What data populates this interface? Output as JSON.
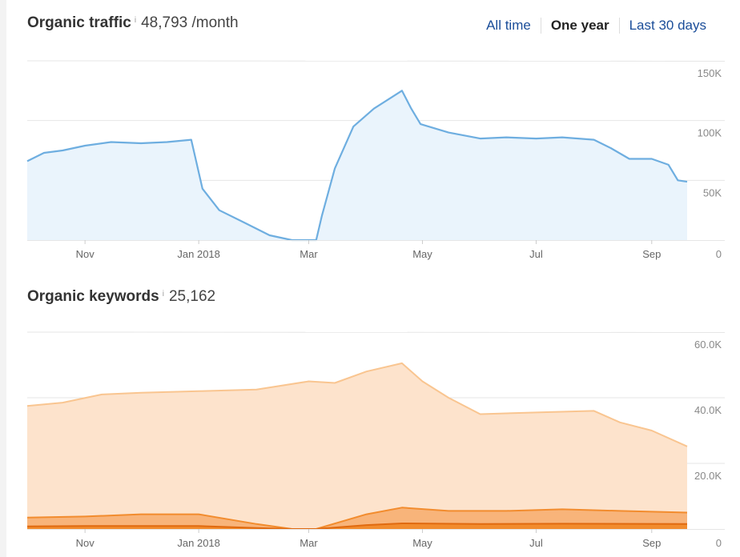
{
  "traffic": {
    "title": "Organic traffic",
    "info": "i",
    "value": "48,793 /month",
    "tabs": [
      {
        "label": "All time",
        "active": false
      },
      {
        "label": "One year",
        "active": true
      },
      {
        "label": "Last 30 days",
        "active": false
      }
    ]
  },
  "keywords": {
    "title": "Organic keywords",
    "info": "i",
    "value": "25,162"
  },
  "colors": {
    "traffic_line": "#6eaee0",
    "traffic_fill": "#eaf4fc",
    "kw_top": "#f9c590",
    "kw_top_fill": "#fde3cc",
    "kw_mid": "#f28c2e",
    "kw_mid_fill": "#f8b47a",
    "kw_low": "#e06a10",
    "tab_link": "#1a4d99",
    "grid": "#e6e6e6",
    "axis_text": "#888888"
  },
  "chart_data": [
    {
      "type": "area",
      "title": "Organic traffic",
      "x_tick_labels": [
        "Nov",
        "Jan 2018",
        "Mar",
        "May",
        "Jul",
        "Sep"
      ],
      "x_tick_dates": [
        "2017-11-01",
        "2018-01-01",
        "2018-03-01",
        "2018-05-01",
        "2018-07-01",
        "2018-09-01"
      ],
      "y_tick_labels": [
        "150K",
        "100K",
        "50K",
        "0"
      ],
      "y_ticks": [
        150000,
        100000,
        50000,
        0
      ],
      "ylim": [
        0,
        150000
      ],
      "grid": true,
      "series": [
        {
          "x": [
            "2017-10-01",
            "2017-10-10",
            "2017-10-20",
            "2017-11-01",
            "2017-11-15",
            "2017-12-01",
            "2017-12-15",
            "2017-12-28",
            "2018-01-03",
            "2018-01-12",
            "2018-01-25",
            "2018-02-08",
            "2018-02-20",
            "2018-03-01",
            "2018-03-05",
            "2018-03-08",
            "2018-03-15",
            "2018-03-25",
            "2018-04-05",
            "2018-04-15",
            "2018-04-20",
            "2018-04-25",
            "2018-04-30",
            "2018-05-15",
            "2018-06-01",
            "2018-06-15",
            "2018-07-01",
            "2018-07-15",
            "2018-08-01",
            "2018-08-10",
            "2018-08-20",
            "2018-09-01",
            "2018-09-10",
            "2018-09-15",
            "2018-09-20"
          ],
          "values": [
            66000,
            73000,
            75000,
            79000,
            82000,
            81000,
            82000,
            84000,
            43000,
            25000,
            15000,
            4000,
            0,
            0,
            0,
            20000,
            60000,
            95000,
            110000,
            120000,
            125000,
            110000,
            97000,
            90000,
            85000,
            86000,
            85000,
            86000,
            84000,
            77000,
            68000,
            68000,
            63000,
            50000,
            48793
          ]
        }
      ]
    },
    {
      "type": "area",
      "title": "Organic keywords",
      "x_tick_labels": [
        "Nov",
        "Jan 2018",
        "Mar",
        "May",
        "Jul",
        "Sep"
      ],
      "x_tick_dates": [
        "2017-11-01",
        "2018-01-01",
        "2018-03-01",
        "2018-05-01",
        "2018-07-01",
        "2018-09-01"
      ],
      "y_tick_labels": [
        "60.0K",
        "40.0K",
        "20.0K",
        "0"
      ],
      "y_ticks": [
        60000,
        40000,
        20000,
        0
      ],
      "ylim": [
        0,
        60000
      ],
      "grid": true,
      "series": [
        {
          "x": [
            "2017-10-01",
            "2017-10-20",
            "2017-11-10",
            "2017-12-01",
            "2018-01-01",
            "2018-02-01",
            "2018-03-01",
            "2018-03-15",
            "2018-04-01",
            "2018-04-20",
            "2018-05-01",
            "2018-05-15",
            "2018-06-01",
            "2018-07-01",
            "2018-08-01",
            "2018-08-15",
            "2018-09-01",
            "2018-09-20"
          ],
          "values": [
            37500,
            38500,
            41000,
            41500,
            42000,
            42500,
            45000,
            44500,
            48000,
            50500,
            45000,
            40000,
            35000,
            35500,
            36000,
            32500,
            30000,
            25162
          ]
        },
        {
          "x": [
            "2017-10-01",
            "2017-11-01",
            "2017-12-01",
            "2018-01-01",
            "2018-02-01",
            "2018-02-20",
            "2018-03-05",
            "2018-04-01",
            "2018-04-20",
            "2018-05-15",
            "2018-06-15",
            "2018-07-15",
            "2018-08-15",
            "2018-09-20"
          ],
          "values": [
            3500,
            3800,
            4500,
            4500,
            1500,
            0,
            0,
            4500,
            6500,
            5500,
            5500,
            6000,
            5500,
            5000
          ]
        },
        {
          "x": [
            "2017-10-01",
            "2017-11-01",
            "2018-01-01",
            "2018-02-01",
            "2018-02-20",
            "2018-03-05",
            "2018-04-01",
            "2018-04-20",
            "2018-06-01",
            "2018-07-15",
            "2018-09-20"
          ],
          "values": [
            800,
            900,
            900,
            300,
            0,
            0,
            1200,
            1700,
            1500,
            1600,
            1500
          ]
        }
      ]
    }
  ]
}
